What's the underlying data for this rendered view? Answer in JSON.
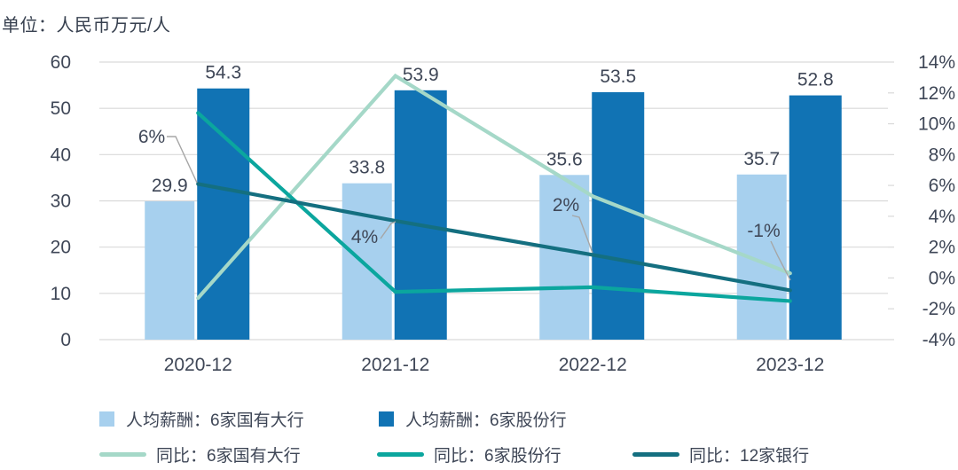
{
  "title": "单位：人民币万元/人",
  "colors": {
    "bar_light_blue": "#a7d0ee",
    "bar_dark_blue": "#1173b4",
    "line_mint": "#a5d8c8",
    "line_teal": "#0ba69e",
    "line_dark_teal": "#146f80",
    "grid": "#d9d9d9",
    "text": "#3f4757",
    "leader": "#a6a6a6"
  },
  "chart_data": {
    "type": "combo bar+line",
    "categories": [
      "2020-12",
      "2021-12",
      "2022-12",
      "2023-12"
    ],
    "bar_series": [
      {
        "name": "人均薪酬：6家国有大行",
        "color": "#a7d0ee",
        "axis": "left",
        "values": [
          29.9,
          33.8,
          35.6,
          35.7
        ]
      },
      {
        "name": "人均薪酬：6家股份行",
        "color": "#1173b4",
        "axis": "left",
        "values": [
          54.3,
          53.9,
          53.5,
          52.8
        ]
      }
    ],
    "line_series": [
      {
        "name": "同比：6家国有大行",
        "color": "#a5d8c8",
        "axis": "right",
        "values_pct": [
          -1.3,
          13.1,
          5.3,
          0.3
        ]
      },
      {
        "name": "同比：6家股份行",
        "color": "#0ba69e",
        "axis": "right",
        "values_pct": [
          10.7,
          -0.9,
          -0.6,
          -1.5
        ]
      },
      {
        "name": "同比：12家银行",
        "color": "#146f80",
        "axis": "right",
        "values_pct": [
          6.1,
          3.7,
          1.5,
          -0.8
        ]
      }
    ],
    "annotations": [
      {
        "label": "6%",
        "series": "同比：12家银行",
        "category": "2020-12"
      },
      {
        "label": "4%",
        "series": "同比：12家银行",
        "category": "2021-12"
      },
      {
        "label": "2%",
        "series": "同比：12家银行",
        "category": "2022-12"
      },
      {
        "label": "-1%",
        "series": "同比：12家银行",
        "category": "2023-12"
      }
    ],
    "left_axis": {
      "min": 0,
      "max": 60,
      "step": 10,
      "ticks": [
        "60",
        "50",
        "40",
        "30",
        "20",
        "10",
        "0"
      ]
    },
    "right_axis": {
      "min": -4,
      "max": 14,
      "step": 2,
      "ticks": [
        "14%",
        "12%",
        "10%",
        "8%",
        "6%",
        "4%",
        "2%",
        "0%",
        "-2%",
        "-4%"
      ]
    },
    "grid": true,
    "legend_position": "bottom",
    "bar_value_labels": true
  }
}
